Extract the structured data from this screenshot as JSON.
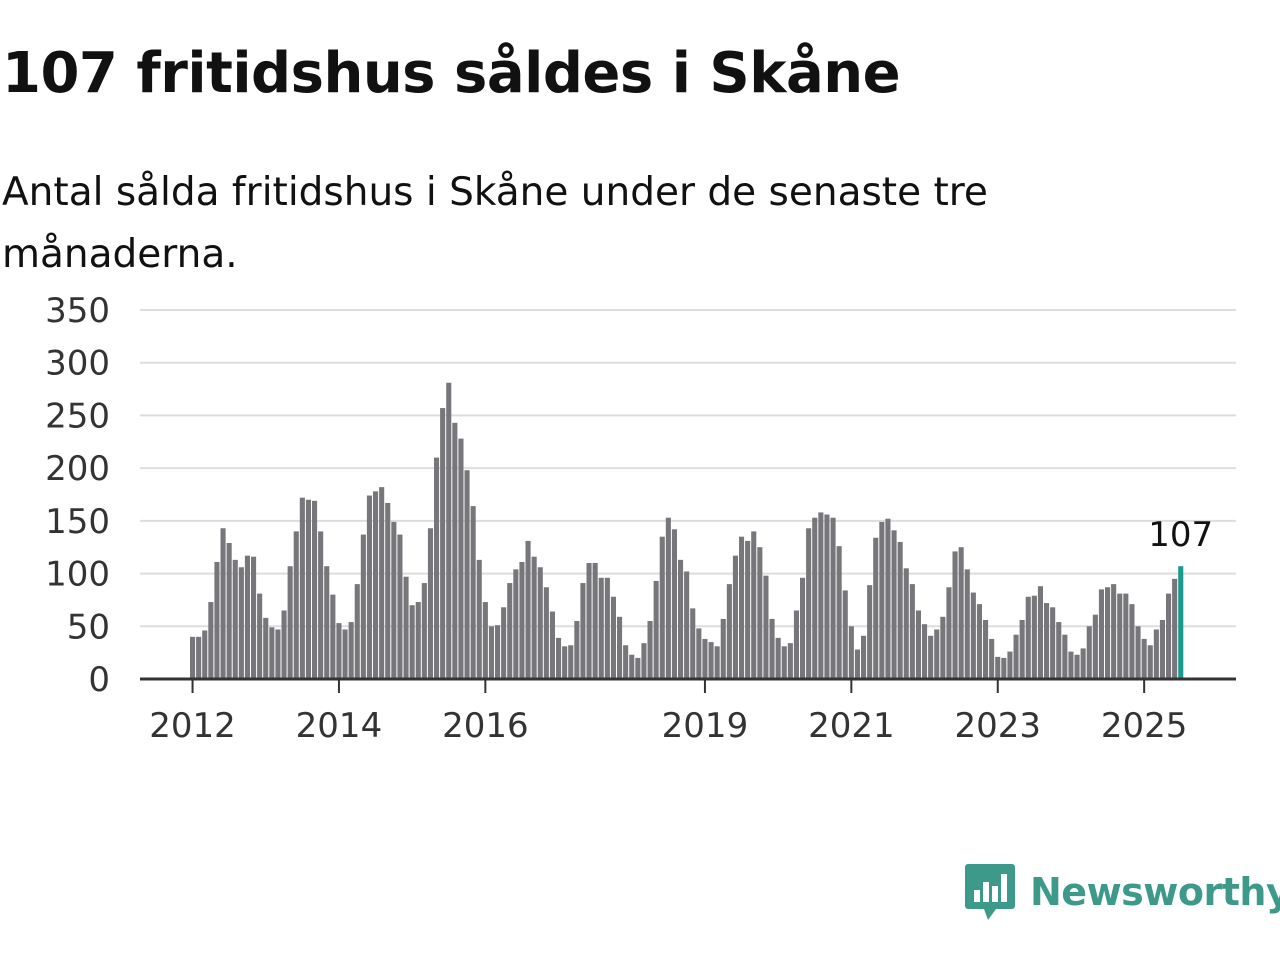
{
  "title": "107 fritidshus såldes i Skåne",
  "subtitle": "Antal sålda fritidshus i Skåne under de senaste tre månaderna.",
  "logo_text": "Newsworthy",
  "colors": {
    "bar": "#77767b",
    "highlight": "#1a9a8e",
    "grid": "#dddddd",
    "axis": "#333333",
    "brand": "#3d9a8b"
  },
  "icon": "newsworthy-logo-icon",
  "chart_data": {
    "type": "bar",
    "title": "107 fritidshus såldes i Skåne",
    "subtitle": "Antal sålda fritidshus i Skåne under de senaste tre månaderna.",
    "xlabel": "",
    "ylabel": "",
    "ylim": [
      0,
      350
    ],
    "yticks": [
      0,
      50,
      100,
      150,
      200,
      250,
      300,
      350
    ],
    "xticks": [
      "2012",
      "2014",
      "2016",
      "2019",
      "2021",
      "2023",
      "2025"
    ],
    "grid": true,
    "start": "2012-01",
    "series": [
      {
        "values": [
          40,
          40,
          46,
          73,
          111,
          143,
          129,
          113,
          106,
          117,
          116,
          81,
          58,
          49,
          47,
          65,
          107,
          140,
          172,
          170,
          169,
          140,
          107,
          80,
          53,
          47,
          54,
          90,
          137,
          174,
          178,
          182,
          167,
          149,
          137,
          97,
          70,
          73,
          91,
          143,
          210,
          257,
          281,
          243,
          228,
          198,
          164,
          113,
          73,
          50,
          51,
          68,
          91,
          104,
          111,
          131,
          116,
          106,
          87,
          64,
          39,
          31,
          32,
          55,
          91,
          110,
          110,
          96,
          96,
          78,
          59,
          32,
          23,
          20,
          34,
          55,
          93,
          135,
          153,
          142,
          113,
          102,
          67,
          48,
          38,
          35,
          31,
          57,
          90,
          117,
          135,
          131,
          140,
          125,
          98,
          57,
          39,
          31,
          34,
          65,
          96,
          143,
          153,
          158,
          156,
          153,
          126,
          84,
          50,
          28,
          41,
          89,
          134,
          149,
          152,
          141,
          130,
          105,
          90,
          65,
          52,
          41,
          47,
          59,
          87,
          121,
          125,
          104,
          82,
          71,
          56,
          38,
          21,
          20,
          26,
          42,
          56,
          78,
          79,
          88,
          72,
          68,
          54,
          42,
          26,
          23,
          29,
          50,
          61,
          85,
          87,
          90,
          81,
          81,
          71,
          50,
          38,
          32,
          47,
          56,
          81,
          95,
          107
        ]
      }
    ],
    "highlight_label": "107"
  }
}
